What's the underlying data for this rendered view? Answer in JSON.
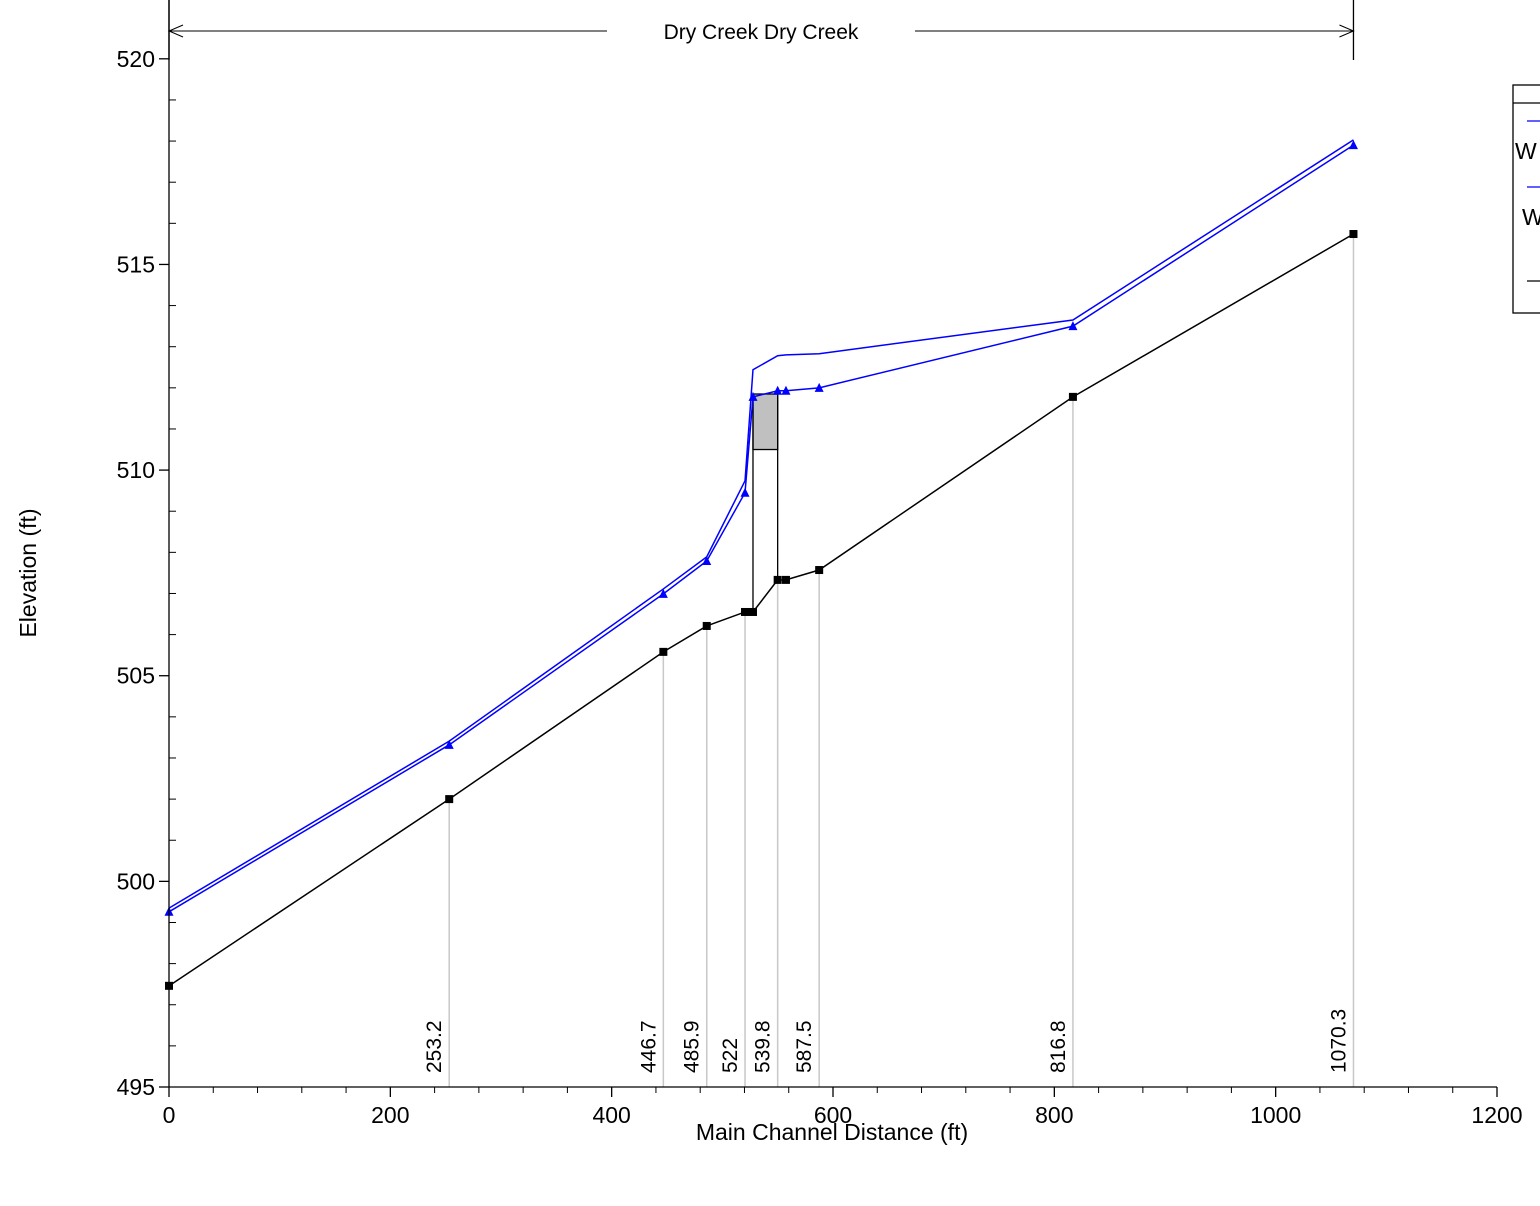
{
  "chart_data": {
    "type": "line",
    "annotation": "Dry Creek Dry Creek",
    "xlabel": "Main Channel Distance (ft)",
    "ylabel": "Elevation (ft)",
    "xlim": [
      0,
      1200
    ],
    "xticks": [
      0,
      200,
      400,
      600,
      800,
      1000,
      1200
    ],
    "ylim": [
      495,
      521.43
    ],
    "yticks": [
      495,
      500,
      505,
      510,
      515,
      520
    ],
    "legend": "right",
    "x": [
      0,
      253.2,
      446.7,
      485.9,
      520.5,
      527.7,
      550,
      557.5,
      587.5,
      816.8,
      1070.3
    ],
    "series": [
      {
        "name": "W",
        "color": "#0000ff",
        "marker": "none",
        "values": [
          499.35,
          503.41,
          507.11,
          507.89,
          509.74,
          512.44,
          512.78,
          512.8,
          512.83,
          513.65,
          518.03
        ]
      },
      {
        "name": "W",
        "color": "#0000ff",
        "marker": "triangle",
        "values": [
          499.26,
          503.32,
          506.99,
          507.79,
          509.45,
          511.78,
          511.93,
          511.93,
          512.0,
          513.5,
          517.9
        ]
      },
      {
        "color": "#000000",
        "marker": "square",
        "values": [
          497.46,
          502.0,
          505.58,
          506.21,
          506.55,
          506.55,
          507.33,
          507.33,
          507.57,
          511.78,
          515.74
        ]
      }
    ],
    "bridge": {
      "x": [
        527.7,
        550
      ],
      "low_chord": 510.5,
      "high_chord": 511.85,
      "color": "#c0c0c0"
    },
    "stations": [
      253.2,
      446.7,
      485.9,
      522,
      539.8,
      587.5,
      816.8,
      1070.3
    ],
    "station_x": [
      253.2,
      446.7,
      485.9,
      520.5,
      550,
      587.5,
      816.8,
      1070.3
    ]
  }
}
